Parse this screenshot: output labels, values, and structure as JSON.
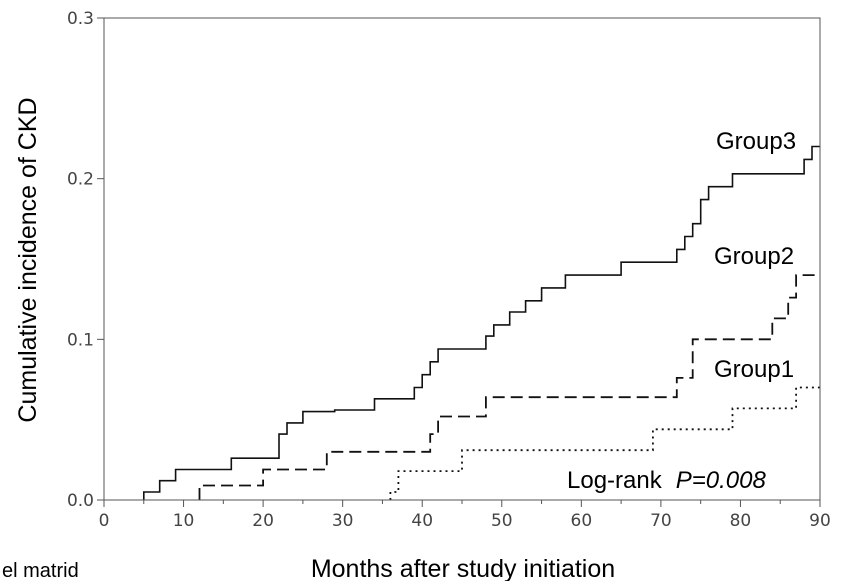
{
  "chart_data": {
    "type": "line",
    "ylabel": "Cumulative incidence of  CKD",
    "xlabel": "Months after study initiation",
    "xlim": [
      0,
      90
    ],
    "ylim": [
      0,
      0.3
    ],
    "x_ticks": [
      0,
      10,
      20,
      30,
      40,
      50,
      60,
      70,
      80,
      90
    ],
    "x_tick_labels": [
      "0",
      "10",
      "20",
      "30",
      "40",
      "50",
      "60",
      "70",
      "80",
      "90"
    ],
    "y_ticks": [
      0,
      0.1,
      0.2,
      0.3
    ],
    "y_tick_labels": [
      "0.0",
      "0.1",
      "0.2",
      "0.3"
    ],
    "grid": false,
    "series": [
      {
        "name": "Group3",
        "style": "solid",
        "color": "#000000",
        "x": [
          5,
          7,
          9,
          16,
          22,
          23,
          25,
          29,
          34,
          39,
          40,
          41,
          42,
          48,
          49,
          51,
          53,
          55,
          58,
          65,
          72,
          73,
          74,
          75,
          76,
          79,
          88,
          89
        ],
        "y": [
          0.005,
          0.012,
          0.019,
          0.026,
          0.041,
          0.048,
          0.055,
          0.056,
          0.063,
          0.07,
          0.078,
          0.086,
          0.094,
          0.102,
          0.109,
          0.117,
          0.124,
          0.132,
          0.14,
          0.148,
          0.156,
          0.164,
          0.172,
          0.187,
          0.195,
          0.203,
          0.212,
          0.22
        ]
      },
      {
        "name": "Group2",
        "style": "dashed",
        "color": "#000000",
        "x": [
          12,
          20,
          28,
          41,
          42,
          48,
          72,
          74,
          84,
          86,
          87
        ],
        "y": [
          0.009,
          0.019,
          0.03,
          0.041,
          0.052,
          0.064,
          0.076,
          0.1,
          0.113,
          0.126,
          0.14
        ]
      },
      {
        "name": "Group1",
        "style": "dotted",
        "color": "#000000",
        "x": [
          36,
          37,
          45,
          69,
          79,
          87
        ],
        "y": [
          0.005,
          0.018,
          0.031,
          0.044,
          0.057,
          0.07
        ]
      }
    ],
    "annotation": {
      "prefix": "Log-rank",
      "p_value": "P=0.008"
    }
  },
  "caption_fragment": "el matrid"
}
